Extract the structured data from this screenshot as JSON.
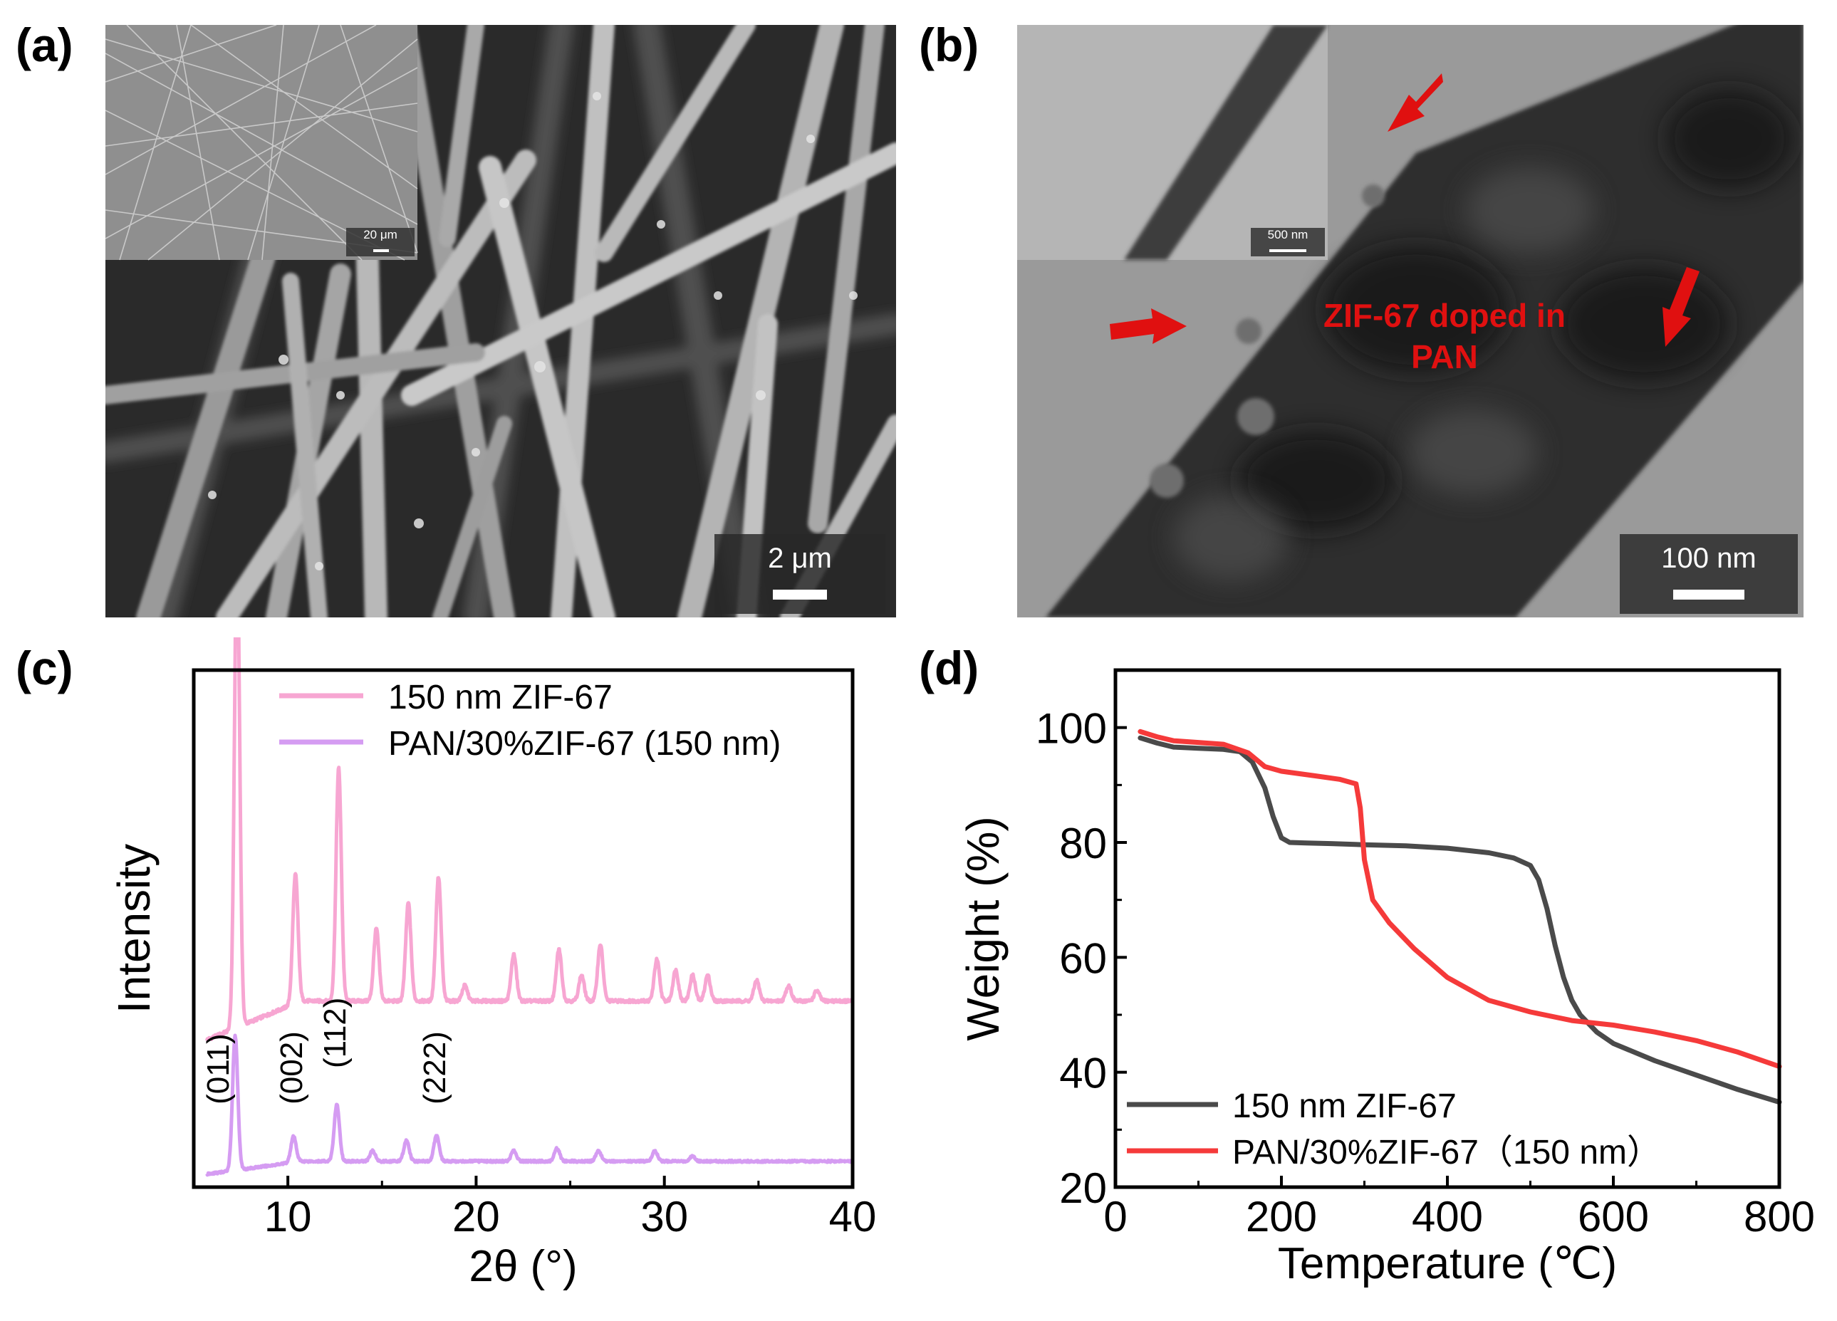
{
  "panels": {
    "a": {
      "label": "(a)",
      "scale_bar": "2 μm",
      "inset_scale_bar": "20 μm"
    },
    "b": {
      "label": "(b)",
      "scale_bar": "100 nm",
      "inset_scale_bar": "500 nm",
      "annotation_line1": "ZIF-67 doped in",
      "annotation_line2": "PAN"
    },
    "c": {
      "label": "(c)"
    },
    "d": {
      "label": "(d)"
    }
  },
  "colors": {
    "pink": "#f7a6d2",
    "violet": "#d59cf2",
    "dark": "#4a4a4a",
    "red": "#f53a3a",
    "arrow_red": "#e01010"
  },
  "chart_data": [
    {
      "panel": "c",
      "type": "line",
      "xlabel": "2θ (°)",
      "ylabel": "Intensity",
      "xlim": [
        5,
        40
      ],
      "xticks": [
        10,
        20,
        30,
        40
      ],
      "yticks_shown": false,
      "legend_position": "top-right",
      "series": [
        {
          "name": "150 nm ZIF-67",
          "color": "#f7a6d2",
          "baseline": 0.285,
          "noise_amp": 0.006,
          "end_level": 0.36,
          "peaks": [
            [
              7.3,
              0.93
            ],
            [
              10.4,
              0.25
            ],
            [
              12.7,
              0.45
            ],
            [
              14.7,
              0.14
            ],
            [
              16.4,
              0.19
            ],
            [
              18.0,
              0.24
            ],
            [
              19.4,
              0.03
            ],
            [
              22.0,
              0.09
            ],
            [
              24.4,
              0.1
            ],
            [
              25.6,
              0.05
            ],
            [
              26.6,
              0.11
            ],
            [
              29.6,
              0.08
            ],
            [
              30.6,
              0.06
            ],
            [
              31.5,
              0.05
            ],
            [
              32.3,
              0.05
            ],
            [
              34.9,
              0.04
            ],
            [
              36.6,
              0.03
            ],
            [
              38.1,
              0.02
            ]
          ]
        },
        {
          "name": "PAN/30%ZIF-67 (150 nm)",
          "color": "#d59cf2",
          "baseline": 0.025,
          "noise_amp": 0.004,
          "end_level": 0.05,
          "peaks": [
            [
              7.2,
              0.26
            ],
            [
              10.3,
              0.05
            ],
            [
              12.6,
              0.11
            ],
            [
              14.5,
              0.02
            ],
            [
              16.3,
              0.04
            ],
            [
              17.9,
              0.05
            ],
            [
              22.0,
              0.02
            ],
            [
              24.3,
              0.025
            ],
            [
              26.5,
              0.02
            ],
            [
              29.5,
              0.02
            ],
            [
              31.5,
              0.01
            ]
          ]
        }
      ],
      "annotations": [
        {
          "text": "(011)",
          "x": 6.4,
          "y": 0.16
        },
        {
          "text": "(002)",
          "x": 10.3,
          "y": 0.16
        },
        {
          "text": "(112)",
          "x": 12.6,
          "y": 0.23
        },
        {
          "text": "(222)",
          "x": 17.9,
          "y": 0.16
        }
      ]
    },
    {
      "panel": "d",
      "type": "line",
      "xlabel": "Temperature (℃)",
      "ylabel": "Weight (%)",
      "xlim": [
        0,
        800
      ],
      "ylim": [
        20,
        110
      ],
      "xticks": [
        0,
        200,
        400,
        600,
        800
      ],
      "yticks": [
        20,
        40,
        60,
        80,
        100
      ],
      "legend_position": "bottom-left",
      "series": [
        {
          "name": "150 nm ZIF-67",
          "color": "#4a4a4a",
          "x": [
            30,
            50,
            70,
            100,
            130,
            150,
            165,
            180,
            190,
            200,
            210,
            230,
            260,
            300,
            350,
            400,
            450,
            480,
            500,
            510,
            520,
            530,
            540,
            550,
            560,
            580,
            600,
            650,
            700,
            750,
            800
          ],
          "y": [
            98.2,
            97.3,
            96.6,
            96.4,
            96.2,
            95.8,
            94.0,
            89.5,
            84.5,
            80.8,
            80.0,
            79.9,
            79.8,
            79.6,
            79.4,
            79.0,
            78.2,
            77.3,
            76.0,
            73.5,
            68.5,
            62.0,
            56.5,
            52.5,
            50.0,
            47.0,
            45.0,
            42.0,
            39.5,
            37.0,
            34.8
          ]
        },
        {
          "name": "PAN/30%ZIF-67（150 nm）",
          "color": "#f53a3a",
          "x": [
            30,
            50,
            70,
            100,
            130,
            160,
            180,
            200,
            240,
            270,
            290,
            295,
            300,
            310,
            330,
            360,
            400,
            450,
            500,
            550,
            600,
            650,
            700,
            750,
            800
          ],
          "y": [
            99.3,
            98.4,
            97.7,
            97.4,
            97.1,
            95.6,
            93.2,
            92.4,
            91.6,
            91.0,
            90.2,
            86.0,
            77.0,
            70.0,
            66.0,
            61.5,
            56.5,
            52.5,
            50.5,
            49.0,
            48.2,
            47.0,
            45.5,
            43.5,
            41.0
          ]
        }
      ]
    }
  ]
}
